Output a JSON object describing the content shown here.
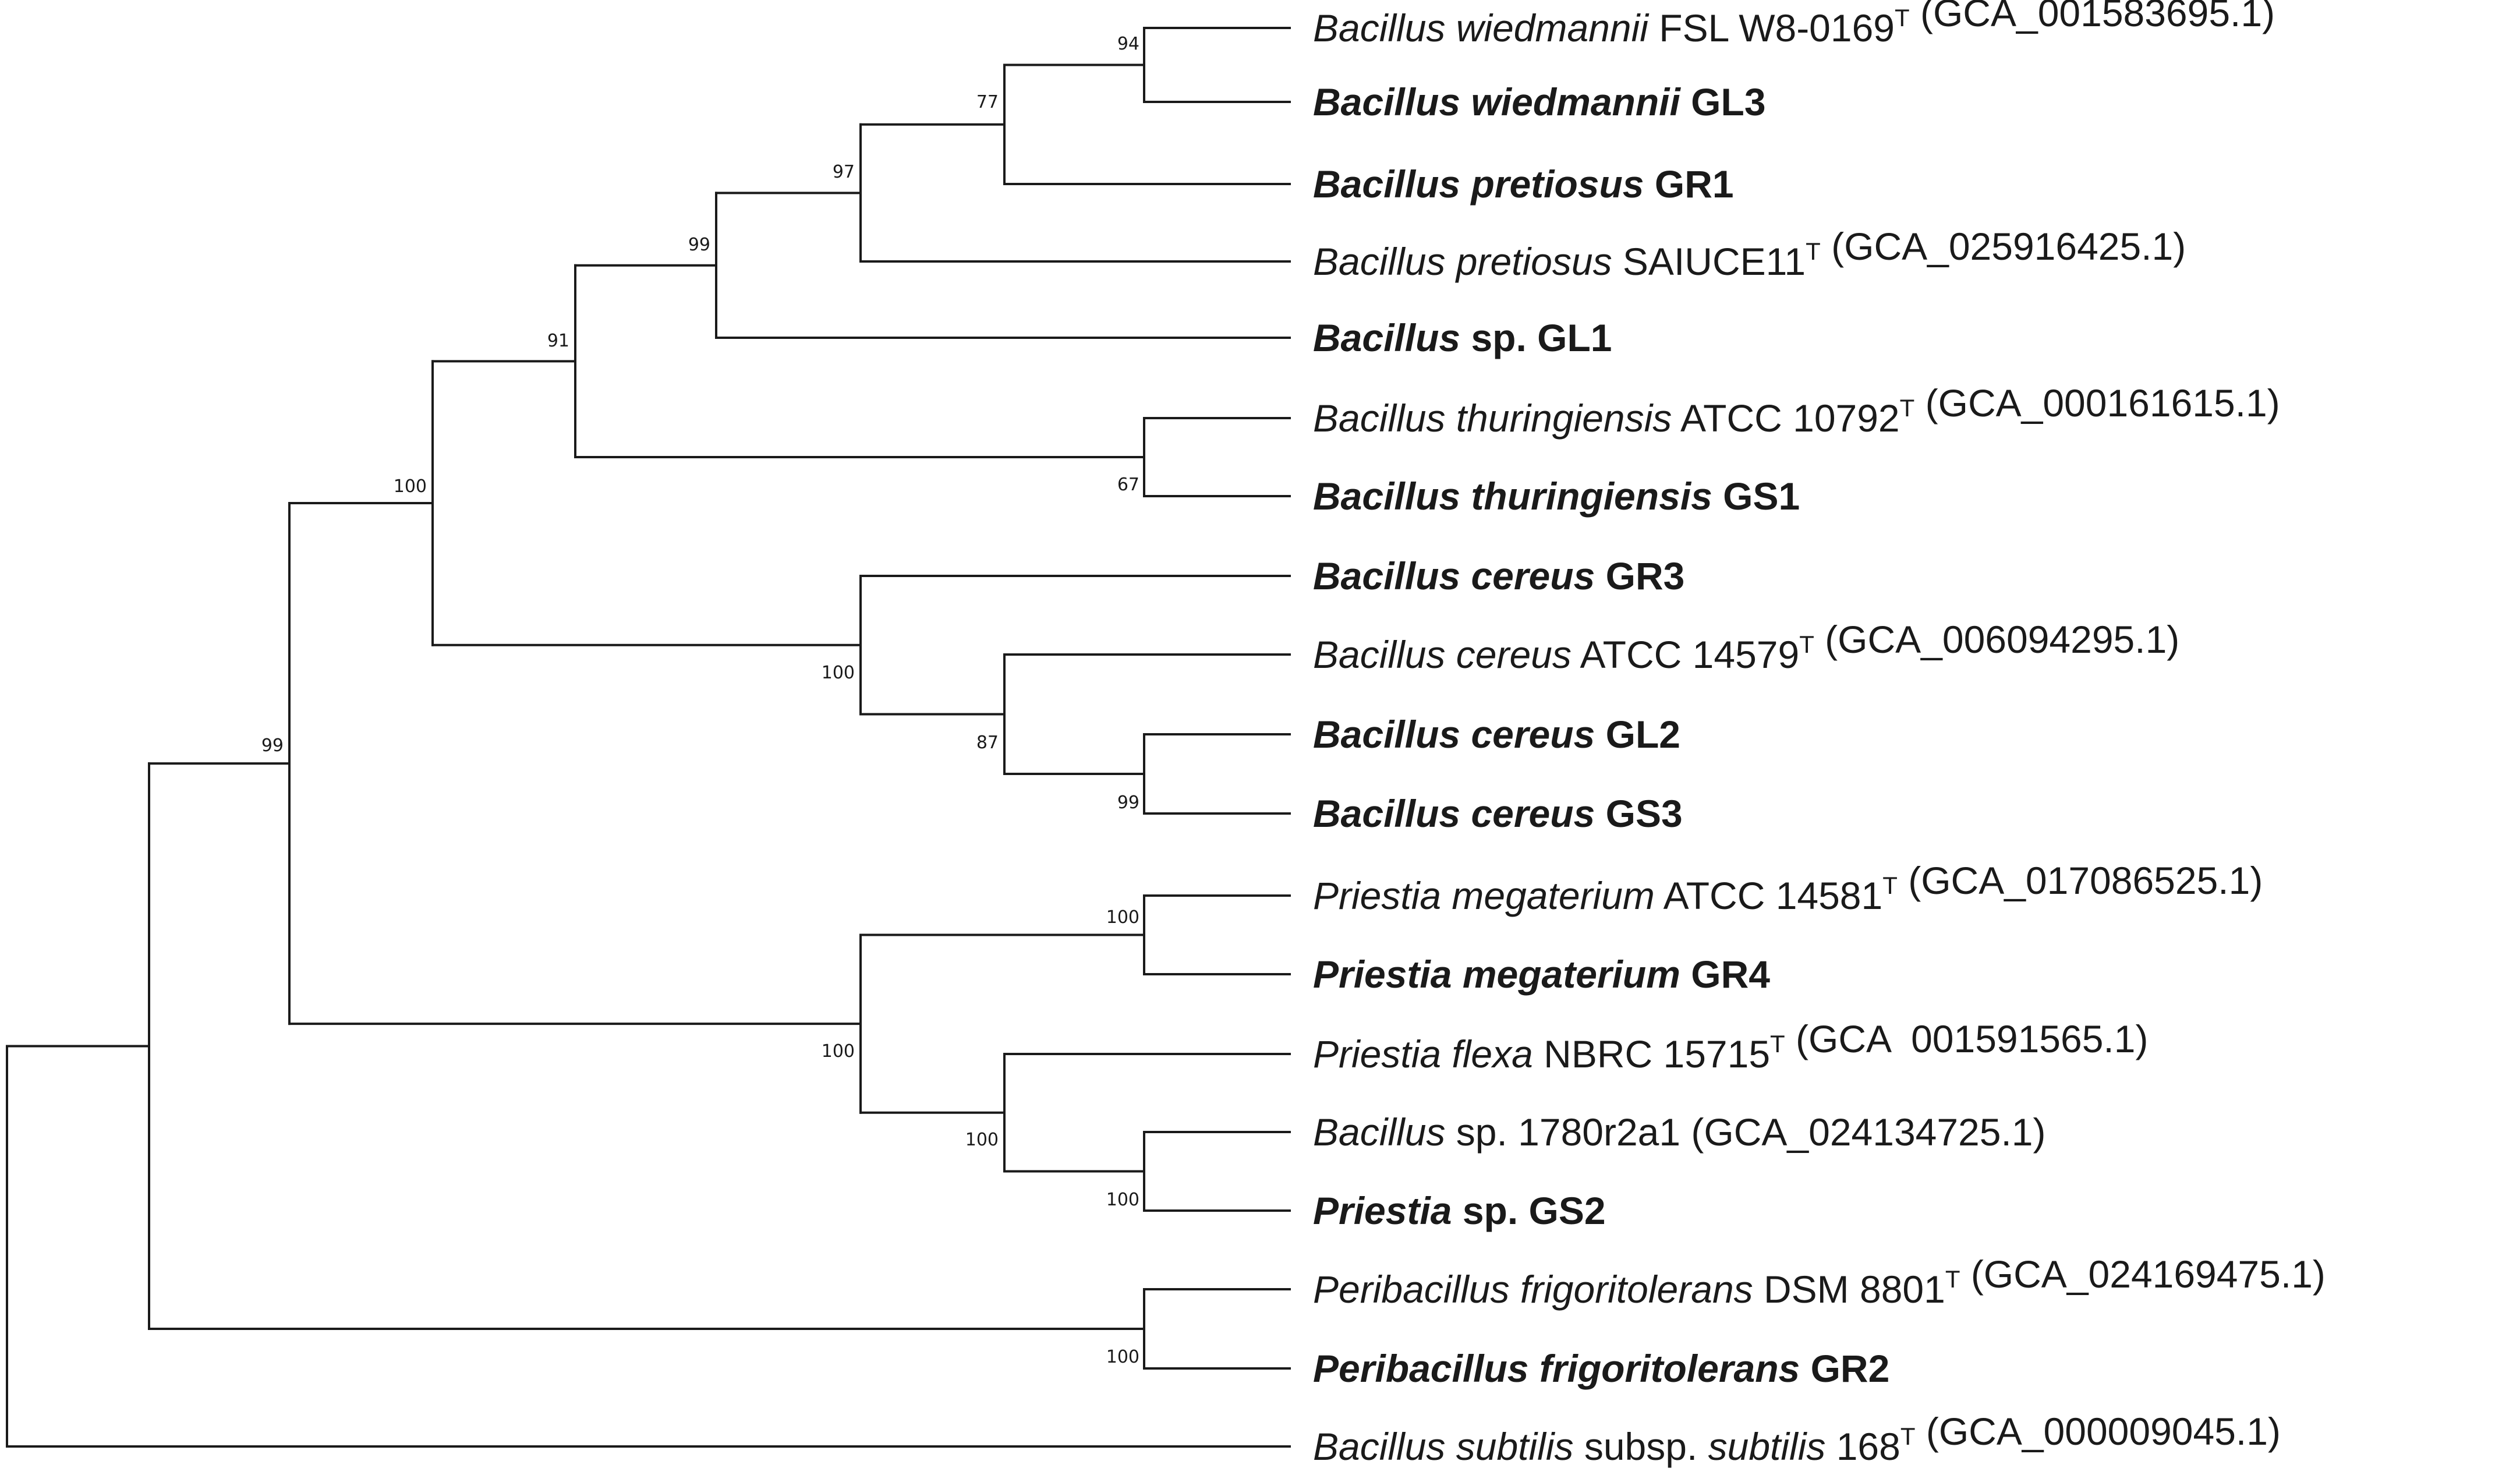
{
  "tree": {
    "taxa": [
      {
        "id": "wied_type",
        "bold": false,
        "parts": [
          {
            "t": "Bacillus wiedmannii",
            "i": true
          },
          {
            "t": " FSL W8-0169"
          },
          {
            "t": "T",
            "sup": true
          },
          {
            "t": " (GCA_001583695.1)"
          }
        ]
      },
      {
        "id": "wied_gl3",
        "bold": true,
        "parts": [
          {
            "t": "Bacillus wiedmannii",
            "i": true
          },
          {
            "t": " GL3"
          }
        ]
      },
      {
        "id": "pret_gr1",
        "bold": true,
        "parts": [
          {
            "t": "Bacillus pretiosus",
            "i": true
          },
          {
            "t": " GR1"
          }
        ]
      },
      {
        "id": "pret_type",
        "bold": false,
        "parts": [
          {
            "t": "Bacillus pretiosus",
            "i": true
          },
          {
            "t": " SAIUCE11"
          },
          {
            "t": "T",
            "sup": true
          },
          {
            "t": " (GCA_025916425.1)"
          }
        ]
      },
      {
        "id": "sp_gl1",
        "bold": true,
        "parts": [
          {
            "t": "Bacillus",
            "i": true
          },
          {
            "t": " sp. GL1"
          }
        ]
      },
      {
        "id": "thur_type",
        "bold": false,
        "parts": [
          {
            "t": "Bacillus thuringiensis",
            "i": true
          },
          {
            "t": " ATCC 10792"
          },
          {
            "t": "T",
            "sup": true
          },
          {
            "t": " (GCA_000161615.1)"
          }
        ]
      },
      {
        "id": "thur_gs1",
        "bold": true,
        "parts": [
          {
            "t": "Bacillus thuringiensis",
            "i": true
          },
          {
            "t": " GS1"
          }
        ]
      },
      {
        "id": "cer_gr3",
        "bold": true,
        "parts": [
          {
            "t": "Bacillus cereus",
            "i": true
          },
          {
            "t": " GR3"
          }
        ]
      },
      {
        "id": "cer_type",
        "bold": false,
        "parts": [
          {
            "t": "Bacillus cereus",
            "i": true
          },
          {
            "t": " ATCC 14579"
          },
          {
            "t": "T",
            "sup": true
          },
          {
            "t": " (GCA_006094295.1)"
          }
        ]
      },
      {
        "id": "cer_gl2",
        "bold": true,
        "parts": [
          {
            "t": "Bacillus cereus",
            "i": true
          },
          {
            "t": " GL2"
          }
        ]
      },
      {
        "id": "cer_gs3",
        "bold": true,
        "parts": [
          {
            "t": "Bacillus cereus",
            "i": true
          },
          {
            "t": " GS3"
          }
        ]
      },
      {
        "id": "meg_type",
        "bold": false,
        "parts": [
          {
            "t": "Priestia megaterium",
            "i": true
          },
          {
            "t": " ATCC 14581"
          },
          {
            "t": "T",
            "sup": true
          },
          {
            "t": " (GCA_017086525.1)"
          }
        ]
      },
      {
        "id": "meg_gr4",
        "bold": true,
        "parts": [
          {
            "t": "Priestia megaterium",
            "i": true
          },
          {
            "t": " GR4"
          }
        ]
      },
      {
        "id": "flexa_type",
        "bold": false,
        "parts": [
          {
            "t": "Priestia flexa",
            "i": true
          },
          {
            "t": " NBRC 15715"
          },
          {
            "t": "T",
            "sup": true
          },
          {
            "t": " (GCA  001591565.1)"
          }
        ]
      },
      {
        "id": "sp_1780",
        "bold": false,
        "parts": [
          {
            "t": "Bacillus",
            "i": true
          },
          {
            "t": " sp. 1780r2a1 (GCA_024134725.1)"
          }
        ]
      },
      {
        "id": "pri_gs2",
        "bold": true,
        "parts": [
          {
            "t": "Priestia",
            "i": true
          },
          {
            "t": " sp. GS2"
          }
        ]
      },
      {
        "id": "peri_type",
        "bold": false,
        "parts": [
          {
            "t": "Peribacillus frigoritolerans",
            "i": true
          },
          {
            "t": " DSM 8801"
          },
          {
            "t": "T",
            "sup": true
          },
          {
            "t": " (GCA_024169475.1)"
          }
        ]
      },
      {
        "id": "peri_gr2",
        "bold": true,
        "parts": [
          {
            "t": "Peribacillus frigoritolerans",
            "i": true
          },
          {
            "t": " GR2"
          }
        ]
      },
      {
        "id": "subt_type",
        "bold": false,
        "parts": [
          {
            "t": "Bacillus subtilis",
            "i": true
          },
          {
            "t": " subsp. "
          },
          {
            "t": "subtilis",
            "i": true
          },
          {
            "t": " 168"
          },
          {
            "t": "T",
            "sup": true
          },
          {
            "t": " (GCA_000009045.1)"
          }
        ]
      }
    ],
    "clades": [
      {
        "id": "n_wied",
        "children": [
          "wied_type",
          "wied_gl3"
        ],
        "support": "94"
      },
      {
        "id": "n_wied_pret",
        "children": [
          "n_wied",
          "pret_gr1"
        ],
        "support": "77"
      },
      {
        "id": "n_pret",
        "children": [
          "n_wied_pret",
          "pret_type"
        ],
        "support": "97"
      },
      {
        "id": "n_gl1",
        "children": [
          "n_pret",
          "sp_gl1"
        ],
        "support": "99"
      },
      {
        "id": "n_thur",
        "children": [
          "thur_type",
          "thur_gs1"
        ],
        "support": "67"
      },
      {
        "id": "n_thur_grp",
        "children": [
          "n_gl1",
          "n_thur"
        ],
        "support": "91"
      },
      {
        "id": "n_gl2_gs3",
        "children": [
          "cer_gl2",
          "cer_gs3"
        ],
        "support": "99"
      },
      {
        "id": "n_cer_type",
        "children": [
          "cer_type",
          "n_gl2_gs3"
        ],
        "support": "87"
      },
      {
        "id": "n_cer",
        "children": [
          "cer_gr3",
          "n_cer_type"
        ],
        "support": "100"
      },
      {
        "id": "n_cereus_group",
        "children": [
          "n_thur_grp",
          "n_cer"
        ],
        "support": "100"
      },
      {
        "id": "n_meg",
        "children": [
          "meg_type",
          "meg_gr4"
        ],
        "support": "100"
      },
      {
        "id": "n_gs2",
        "children": [
          "sp_1780",
          "pri_gs2"
        ],
        "support": "100"
      },
      {
        "id": "n_flexa",
        "children": [
          "flexa_type",
          "n_gs2"
        ],
        "support": "100"
      },
      {
        "id": "n_priestia",
        "children": [
          "n_meg",
          "n_flexa"
        ],
        "support": "100"
      },
      {
        "id": "n_bac_pri",
        "children": [
          "n_cereus_group",
          "n_priestia"
        ],
        "support": ""
      },
      {
        "id": "n_peri",
        "children": [
          "peri_type",
          "peri_gr2"
        ],
        "support": "100"
      },
      {
        "id": "n_ingroup",
        "children": [
          "n_bac_pri",
          "n_peri"
        ],
        "support": "99"
      },
      {
        "id": "root",
        "children": [
          "n_ingroup",
          "subt_type"
        ],
        "support": ""
      }
    ]
  }
}
